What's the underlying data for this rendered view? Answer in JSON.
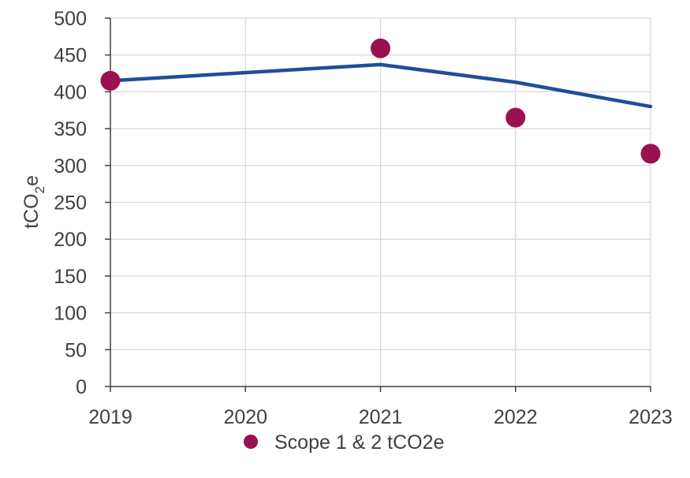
{
  "chart_data": {
    "type": "scatter",
    "title": "",
    "xlabel": "",
    "ylabel": "tCO2e",
    "ylabel_parts": [
      "tCO",
      "2",
      "e"
    ],
    "x": [
      2019,
      2020,
      2021,
      2022,
      2023
    ],
    "x_tick_labels": [
      "2019",
      "2020",
      "2021",
      "2022",
      "2023"
    ],
    "ylim": [
      0,
      500
    ],
    "y_ticks": [
      0,
      50,
      100,
      150,
      200,
      250,
      300,
      350,
      400,
      450,
      500
    ],
    "grid": true,
    "legend_position": "bottom",
    "series": [
      {
        "name": "Scope 1 & 2 tCO2e",
        "kind": "scatter",
        "x": [
          2019,
          2021,
          2022,
          2023
        ],
        "values": [
          415,
          459,
          365,
          316
        ],
        "color": "#9b1050"
      },
      {
        "kind": "line",
        "x": [
          2019,
          2021,
          2022,
          2023
        ],
        "values": [
          415,
          437,
          413,
          380
        ],
        "color": "#1f4e9a"
      }
    ]
  }
}
